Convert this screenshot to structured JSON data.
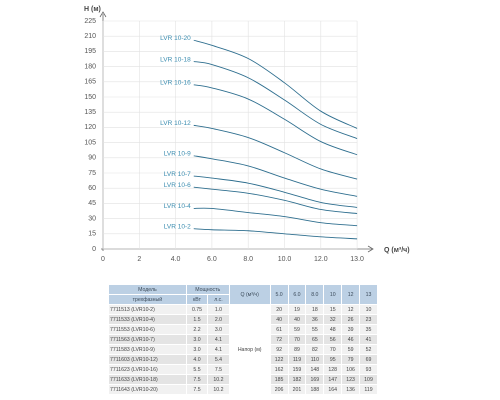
{
  "chart_data": {
    "type": "line",
    "xlabel": "Q (м³/ч)",
    "ylabel": "H (м)",
    "x": [
      5,
      6,
      8,
      10,
      12,
      13
    ],
    "xlim": [
      0,
      13
    ],
    "xticks": [
      0,
      2,
      {
        "value": 4,
        "label": "4.0"
      },
      {
        "value": 6,
        "label": "6.0"
      },
      {
        "value": 8,
        "label": "8.0"
      },
      {
        "value": 10,
        "label": "10.0"
      },
      {
        "value": 12,
        "label": "12.0"
      },
      {
        "value": 13,
        "label": "13.0"
      }
    ],
    "ylim": [
      0,
      225
    ],
    "yticks": [
      0,
      15,
      30,
      45,
      60,
      75,
      90,
      105,
      120,
      135,
      150,
      165,
      180,
      195,
      210,
      225
    ],
    "grid": true,
    "series": [
      {
        "name": "LVR 10-20",
        "color": "#2f6f8f",
        "values": [
          206,
          201,
          188,
          164,
          136,
          119
        ]
      },
      {
        "name": "LVR 10-18",
        "color": "#2f6f8f",
        "values": [
          185,
          182,
          169,
          147,
          123,
          109
        ]
      },
      {
        "name": "LVR 10-16",
        "color": "#2f6f8f",
        "values": [
          162,
          159,
          148,
          128,
          106,
          93
        ]
      },
      {
        "name": "LVR 10-12",
        "color": "#2f6f8f",
        "values": [
          122,
          119,
          110,
          95,
          79,
          69
        ]
      },
      {
        "name": "LVR 10-9",
        "color": "#2f6f8f",
        "values": [
          92,
          89,
          82,
          70,
          59,
          52
        ]
      },
      {
        "name": "LVR 10-7",
        "color": "#2f6f8f",
        "values": [
          72,
          70,
          65,
          56,
          46,
          41
        ]
      },
      {
        "name": "LVR 10-6",
        "color": "#2f6f8f",
        "values": [
          61,
          59,
          55,
          48,
          39,
          35
        ]
      },
      {
        "name": "LVR 10-4",
        "color": "#2f6f8f",
        "values": [
          40,
          40,
          36,
          32,
          26,
          23
        ]
      },
      {
        "name": "LVR 10-2",
        "color": "#2f6f8f",
        "values": [
          20,
          19,
          18,
          15,
          12,
          10
        ]
      }
    ]
  },
  "table": {
    "model_header": "Модель",
    "model_subheader": "трехфазный",
    "power_header": "Мощность",
    "power_units": [
      "кВт",
      "л.с."
    ],
    "q_header": "Q (м³/ч)",
    "q_values": [
      "5.0",
      "6.0",
      "8.0",
      "10",
      "12",
      "13"
    ],
    "head_label": "Напор (м)",
    "rows": [
      [
        "7711513 (LVR10-2)",
        "0.75",
        "1.0",
        20,
        19,
        18,
        15,
        12,
        10
      ],
      [
        "7711533 (LVR10-4)",
        "1.5",
        "2.0",
        40,
        40,
        36,
        32,
        26,
        23
      ],
      [
        "7711553 (LVR10-6)",
        "2.2",
        "3.0",
        61,
        59,
        55,
        48,
        39,
        35
      ],
      [
        "7711563 (LVR10-7)",
        "3.0",
        "4.1",
        72,
        70,
        65,
        56,
        46,
        41
      ],
      [
        "7711583 (LVR10-9)",
        "3.0",
        "4.1",
        92,
        89,
        82,
        70,
        59,
        52
      ],
      [
        "7711603 (LVR10-12)",
        "4.0",
        "5.4",
        122,
        119,
        110,
        95,
        79,
        69
      ],
      [
        "7711623 (LVR10-16)",
        "5.5",
        "7.5",
        162,
        159,
        148,
        128,
        106,
        93
      ],
      [
        "7711633 (LVR10-18)",
        "7.5",
        "10.2",
        185,
        182,
        169,
        147,
        123,
        109
      ],
      [
        "7711643 (LVR10-20)",
        "7.5",
        "10.2",
        206,
        201,
        188,
        164,
        136,
        119
      ]
    ]
  }
}
